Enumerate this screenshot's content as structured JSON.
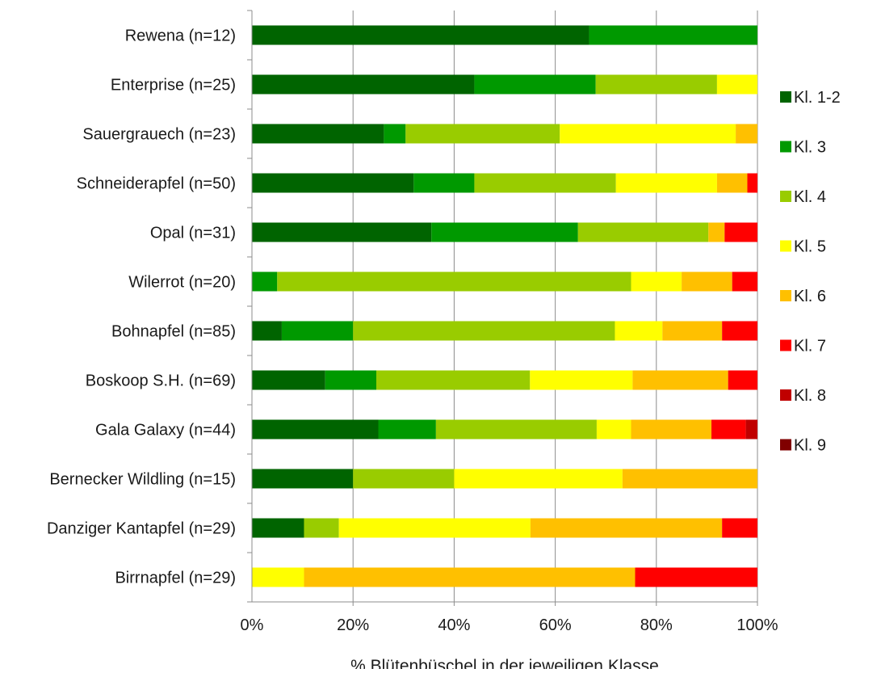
{
  "chart_data": {
    "type": "bar",
    "orientation": "horizontal",
    "stacked": "percent",
    "title": "",
    "xlabel": "% Blütenbüschel in der jeweiligen Klasse",
    "ylabel": "",
    "xlim": [
      0,
      100
    ],
    "x_ticks": [
      "0%",
      "20%",
      "40%",
      "60%",
      "80%",
      "100%"
    ],
    "grid": "vertical",
    "legend_position": "right",
    "categories": [
      "Rewena (n=12)",
      "Enterprise (n=25)",
      "Sauergrauech (n=23)",
      "Schneiderapfel (n=50)",
      "Opal (n=31)",
      "Wilerrot (n=20)",
      "Bohnapfel (n=85)",
      "Boskoop S.H. (n=69)",
      "Gala Galaxy (n=44)",
      "Bernecker Wildling (n=15)",
      "Danziger Kantapfel (n=29)",
      "Birrnapfel (n=29)"
    ],
    "series": [
      {
        "name": "Kl. 1-2",
        "color": "#006400",
        "values": [
          66.7,
          44.0,
          26.1,
          32.0,
          35.5,
          0,
          5.9,
          14.5,
          25.0,
          20.0,
          10.3,
          0
        ]
      },
      {
        "name": "Kl. 3",
        "color": "#009900",
        "values": [
          33.3,
          24.0,
          4.3,
          12.0,
          29.0,
          5.0,
          14.1,
          10.1,
          11.4,
          0,
          0,
          0
        ]
      },
      {
        "name": "Kl. 4",
        "color": "#99cc00",
        "values": [
          0,
          24.0,
          30.5,
          28.0,
          25.8,
          70.0,
          51.8,
          30.4,
          31.8,
          20.0,
          6.9,
          0
        ]
      },
      {
        "name": "Kl. 5",
        "color": "#ffff00",
        "values": [
          0,
          8.0,
          34.8,
          20.0,
          0,
          10.0,
          9.4,
          20.3,
          6.8,
          33.3,
          37.9,
          10.3
        ]
      },
      {
        "name": "Kl. 6",
        "color": "#ffc000",
        "values": [
          0,
          0,
          4.3,
          6.0,
          3.2,
          10.0,
          11.8,
          18.9,
          15.9,
          26.7,
          37.9,
          65.5
        ]
      },
      {
        "name": "Kl. 7",
        "color": "#ff0000",
        "values": [
          0,
          0,
          0,
          2.0,
          6.5,
          5.0,
          7.0,
          5.8,
          6.8,
          0,
          7.0,
          24.2
        ]
      },
      {
        "name": "Kl. 8",
        "color": "#c00000",
        "values": [
          0,
          0,
          0,
          0,
          0,
          0,
          0,
          0,
          2.3,
          0,
          0,
          0
        ]
      },
      {
        "name": "Kl. 9",
        "color": "#800000",
        "values": [
          0,
          0,
          0,
          0,
          0,
          0,
          0,
          0,
          0,
          0,
          0,
          0
        ]
      }
    ]
  }
}
